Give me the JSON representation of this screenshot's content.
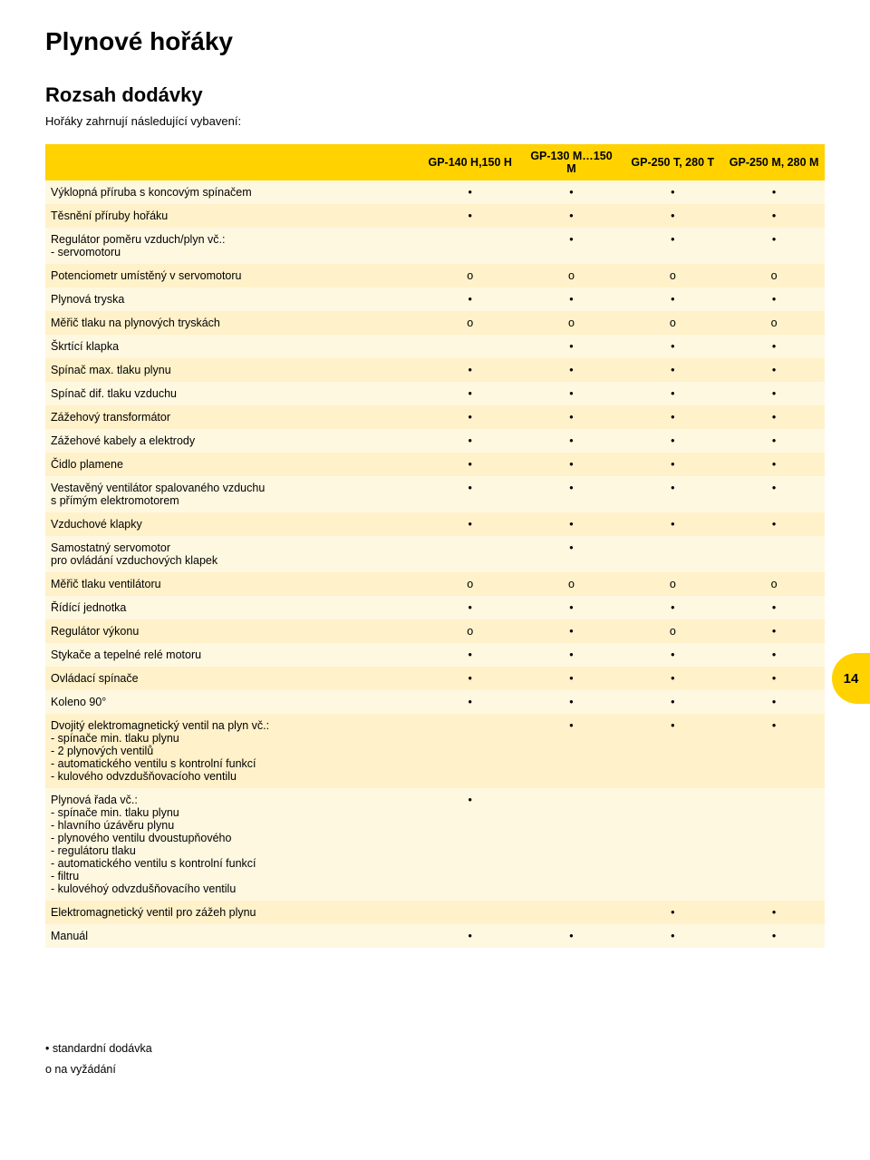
{
  "page_title": "Plynové hořáky",
  "section_title": "Rozsah dodávky",
  "subtitle": "Hořáky zahrnují následující vybavení:",
  "page_number": "14",
  "legend": {
    "std": "• standardní dodávka",
    "opt": "o na vyžádání"
  },
  "colors": {
    "header_bg": "#ffd200",
    "row_odd": "#fff8e1",
    "row_even": "#fff1c9"
  },
  "columns": [
    "",
    "GP-140 H,150 H",
    "GP-130 M…150 M",
    "GP-250 T, 280 T",
    "GP-250 M, 280 M"
  ],
  "rows": [
    {
      "label": "Výklopná příruba s koncovým spínačem",
      "m": [
        "•",
        "•",
        "•",
        "•"
      ]
    },
    {
      "label": "Těsnění příruby hořáku",
      "m": [
        "•",
        "•",
        "•",
        "•"
      ]
    },
    {
      "label": "Regulátor poměru vzduch/plyn vč.:\n- servomotoru",
      "m": [
        "",
        "•",
        "•",
        "•"
      ]
    },
    {
      "label": "Potenciometr umístěný v servomotoru",
      "m": [
        "o",
        "o",
        "o",
        "o"
      ]
    },
    {
      "label": "Plynová tryska",
      "m": [
        "•",
        "•",
        "•",
        "•"
      ]
    },
    {
      "label": "Měřič tlaku na plynových tryskách",
      "m": [
        "o",
        "o",
        "o",
        "o"
      ]
    },
    {
      "label": "Škrtící klapka",
      "m": [
        "",
        "•",
        "•",
        "•"
      ]
    },
    {
      "label": "Spínač max. tlaku plynu",
      "m": [
        "•",
        "•",
        "•",
        "•"
      ]
    },
    {
      "label": "Spínač dif. tlaku vzduchu",
      "m": [
        "•",
        "•",
        "•",
        "•"
      ]
    },
    {
      "label": "Zážehový transformátor",
      "m": [
        "•",
        "•",
        "•",
        "•"
      ]
    },
    {
      "label": "Zážehové kabely a elektrody",
      "m": [
        "•",
        "•",
        "•",
        "•"
      ]
    },
    {
      "label": "Čidlo plamene",
      "m": [
        "•",
        "•",
        "•",
        "•"
      ]
    },
    {
      "label": "Vestavěný ventilátor spalovaného vzduchu\ns přímým elektromotorem",
      "m": [
        "•",
        "•",
        "•",
        "•"
      ]
    },
    {
      "label": "Vzduchové klapky",
      "m": [
        "•",
        "•",
        "•",
        "•"
      ]
    },
    {
      "label": "Samostatný servomotor\npro ovládání vzduchových klapek",
      "m": [
        "",
        "•",
        "",
        ""
      ]
    },
    {
      "label": "Měřič tlaku ventilátoru",
      "m": [
        "o",
        "o",
        "o",
        "o"
      ]
    },
    {
      "label": "Řídící jednotka",
      "m": [
        "•",
        "•",
        "•",
        "•"
      ]
    },
    {
      "label": "Regulátor výkonu",
      "m": [
        "o",
        "•",
        "o",
        "•"
      ]
    },
    {
      "label": "Stykače a tepelné relé motoru",
      "m": [
        "•",
        "•",
        "•",
        "•"
      ]
    },
    {
      "label": "Ovládací spínače",
      "m": [
        "•",
        "•",
        "•",
        "•"
      ]
    },
    {
      "label": "Koleno 90°",
      "m": [
        "•",
        "•",
        "•",
        "•"
      ]
    },
    {
      "label": "Dvojitý elektromagnetický ventil na plyn vč.:\n- spínače min. tlaku plynu\n- 2 plynových ventilů\n- automatického ventilu s kontrolní funkcí\n- kulového odvzdušňovacíoho ventilu",
      "m": [
        "",
        "•",
        "•",
        "•"
      ]
    },
    {
      "label": "Plynová řada vč.:\n- spínače min. tlaku plynu\n- hlavního úzávěru plynu\n- plynového ventilu dvoustupňového\n- regulátoru tlaku\n- automatického ventilu s kontrolní funkcí\n- filtru\n- kulovéhoý odvzdušňovacího ventilu",
      "m": [
        "•",
        "",
        "",
        ""
      ]
    },
    {
      "label": "Elektromagnetický ventil pro zážeh plynu",
      "m": [
        "",
        "",
        "•",
        "•"
      ]
    },
    {
      "label": "Manuál",
      "m": [
        "•",
        "•",
        "•",
        "•"
      ]
    }
  ]
}
